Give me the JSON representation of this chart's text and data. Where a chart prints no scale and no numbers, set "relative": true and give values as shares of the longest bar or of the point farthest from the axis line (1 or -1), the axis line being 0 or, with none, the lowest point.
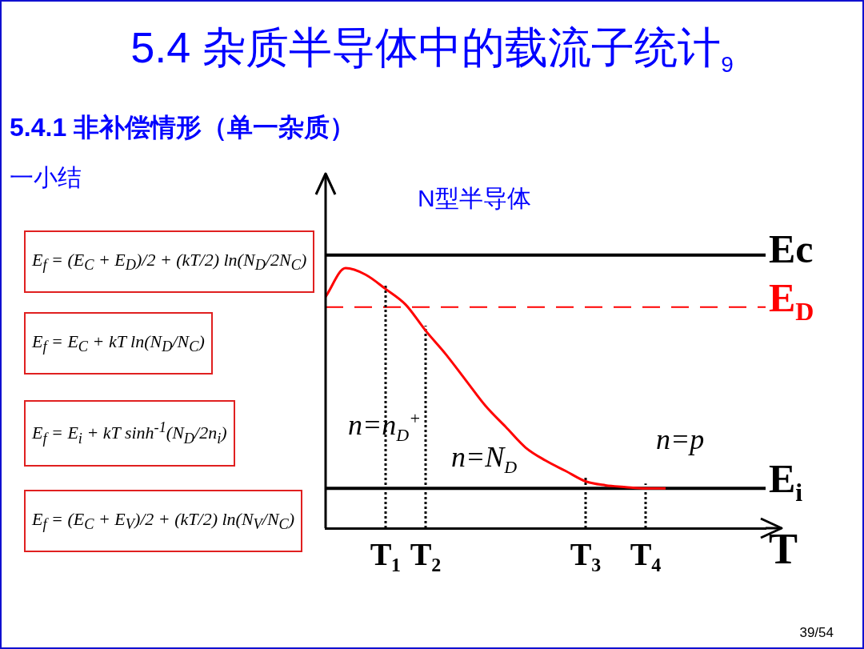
{
  "chart_data": {
    "type": "line",
    "title": "5.4 杂质半导体中的载流子统计$_{9}$",
    "subtitle": "5.4.1 非补偿情形（单一杂质）",
    "xlabel": "T",
    "relative": true,
    "categories": [
      null,
      null,
      null,
      "T₁",
      null,
      "T₂",
      null,
      null,
      null,
      null,
      null,
      null,
      null,
      "T₃",
      null,
      null,
      "T₄",
      null,
      null,
      null,
      null,
      null,
      null
    ],
    "series": [
      {
        "color": "#ff0000",
        "values": [
          0.89,
          1,
          0.975,
          0.92,
          0.86,
          0.76,
          0.67,
          0.57,
          0.47,
          0.39,
          0.31,
          0.26,
          0.22,
          0.18,
          0.165,
          0.158,
          0.153,
          0.153,
          null,
          null,
          null,
          null,
          null
        ]
      }
    ],
    "tick_labels": "x",
    "grid": false,
    "legend": false,
    "marker": "none",
    "line_style": "solid",
    "ref_lines": [
      {
        "axis": "y",
        "value": 1.05,
        "label": "Ec",
        "color": "#000000",
        "line_style": "solid"
      },
      {
        "axis": "y",
        "value": 0.85,
        "label": "E$_{D}$",
        "color": "#ff0000",
        "line_style": "dashed"
      },
      {
        "axis": "y",
        "value": 0.153,
        "label": "E$_{i}$",
        "color": "#000000",
        "line_style": "solid"
      },
      {
        "axis": "x",
        "value": "T₁",
        "color": "#000000",
        "line_style": "dotted"
      },
      {
        "axis": "x",
        "value": "T₂",
        "color": "#000000",
        "line_style": "dotted"
      },
      {
        "axis": "x",
        "value": "T₃",
        "color": "#000000",
        "line_style": "dotted"
      },
      {
        "axis": "x",
        "value": "T₄",
        "color": "#000000",
        "line_style": "dotted"
      }
    ],
    "annotations": [
      "一小结",
      "E$_{f}$ = (E$_{C}$ + E$_{D}$)/2 + (kT/2) ln(N$_{D}$/2N$_{C}$)",
      "E$_{f}$ = E$_{C}$ + kT ln(N$_{D}$/N$_{C}$)",
      "E$_{f}$ = E$_{i}$ + kT sinh$^{-1}$(N$_{D}$/2n$_{i}$)",
      "E$_{f}$ = (E$_{C}$ + E$_{V}$)/2 + (kT/2) ln(N$_{V}$/N$_{C}$)",
      "N型半导体",
      "n=n$_{D}$$^{+}$",
      "n=N$_{D}$",
      "n=p",
      "39/54"
    ]
  }
}
